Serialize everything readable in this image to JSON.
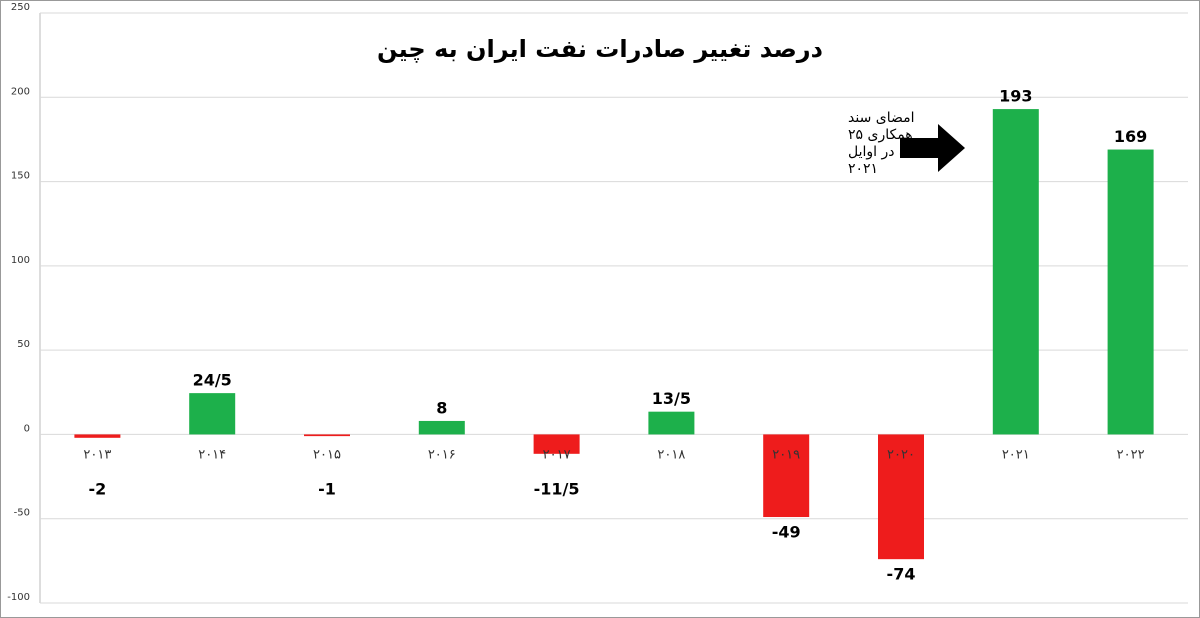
{
  "chart_data": {
    "type": "bar",
    "title": "درصد تغییر صادرات نفت ایران به چین",
    "categories": [
      "۲۰۱۳",
      "۲۰۱۴",
      "۲۰۱۵",
      "۲۰۱۶",
      "۲۰۱۷",
      "۲۰۱۸",
      "۲۰۱۹",
      "۲۰۲۰",
      "۲۰۲۱",
      "۲۰۲۲"
    ],
    "values": [
      -2,
      24.5,
      -1,
      8,
      -11.5,
      13.5,
      -49,
      -74,
      193,
      169
    ],
    "value_labels": [
      "-2",
      "24/5",
      "-1",
      "8",
      "-11/5",
      "13/5",
      "-49",
      "-74",
      "193",
      "169"
    ],
    "colors": [
      "#ee1c1c",
      "#1db04b",
      "#ee1c1c",
      "#1db04b",
      "#ee1c1c",
      "#1db04b",
      "#ee1c1c",
      "#ee1c1c",
      "#1db04b",
      "#1db04b"
    ],
    "ylim": [
      -100,
      250
    ],
    "yticks": [
      -100,
      -50,
      0,
      50,
      100,
      150,
      200,
      250
    ],
    "grid": true,
    "annotation": [
      "امضای سند",
      "همکاری ۲۵",
      "ساله در اوایل",
      "۲۰۲۱"
    ]
  }
}
